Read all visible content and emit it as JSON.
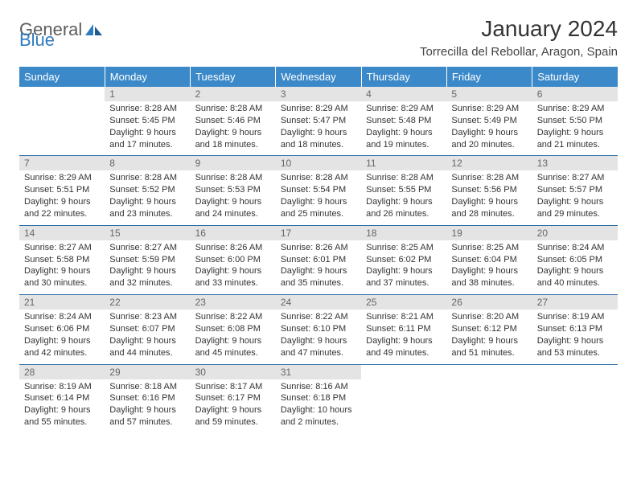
{
  "brand": {
    "word1": "General",
    "word2": "Blue"
  },
  "title": "January 2024",
  "location": "Torrecilla del Rebollar, Aragon, Spain",
  "colors": {
    "header_bg": "#3b89c9",
    "header_text": "#ffffff",
    "daynum_bg": "#e4e4e4",
    "row_border": "#2f6fa8",
    "logo_blue": "#2f7bbf"
  },
  "weekdays": [
    "Sunday",
    "Monday",
    "Tuesday",
    "Wednesday",
    "Thursday",
    "Friday",
    "Saturday"
  ],
  "weeks": [
    [
      {
        "n": "",
        "lines": []
      },
      {
        "n": "1",
        "lines": [
          "Sunrise: 8:28 AM",
          "Sunset: 5:45 PM",
          "Daylight: 9 hours",
          "and 17 minutes."
        ]
      },
      {
        "n": "2",
        "lines": [
          "Sunrise: 8:28 AM",
          "Sunset: 5:46 PM",
          "Daylight: 9 hours",
          "and 18 minutes."
        ]
      },
      {
        "n": "3",
        "lines": [
          "Sunrise: 8:29 AM",
          "Sunset: 5:47 PM",
          "Daylight: 9 hours",
          "and 18 minutes."
        ]
      },
      {
        "n": "4",
        "lines": [
          "Sunrise: 8:29 AM",
          "Sunset: 5:48 PM",
          "Daylight: 9 hours",
          "and 19 minutes."
        ]
      },
      {
        "n": "5",
        "lines": [
          "Sunrise: 8:29 AM",
          "Sunset: 5:49 PM",
          "Daylight: 9 hours",
          "and 20 minutes."
        ]
      },
      {
        "n": "6",
        "lines": [
          "Sunrise: 8:29 AM",
          "Sunset: 5:50 PM",
          "Daylight: 9 hours",
          "and 21 minutes."
        ]
      }
    ],
    [
      {
        "n": "7",
        "lines": [
          "Sunrise: 8:29 AM",
          "Sunset: 5:51 PM",
          "Daylight: 9 hours",
          "and 22 minutes."
        ]
      },
      {
        "n": "8",
        "lines": [
          "Sunrise: 8:28 AM",
          "Sunset: 5:52 PM",
          "Daylight: 9 hours",
          "and 23 minutes."
        ]
      },
      {
        "n": "9",
        "lines": [
          "Sunrise: 8:28 AM",
          "Sunset: 5:53 PM",
          "Daylight: 9 hours",
          "and 24 minutes."
        ]
      },
      {
        "n": "10",
        "lines": [
          "Sunrise: 8:28 AM",
          "Sunset: 5:54 PM",
          "Daylight: 9 hours",
          "and 25 minutes."
        ]
      },
      {
        "n": "11",
        "lines": [
          "Sunrise: 8:28 AM",
          "Sunset: 5:55 PM",
          "Daylight: 9 hours",
          "and 26 minutes."
        ]
      },
      {
        "n": "12",
        "lines": [
          "Sunrise: 8:28 AM",
          "Sunset: 5:56 PM",
          "Daylight: 9 hours",
          "and 28 minutes."
        ]
      },
      {
        "n": "13",
        "lines": [
          "Sunrise: 8:27 AM",
          "Sunset: 5:57 PM",
          "Daylight: 9 hours",
          "and 29 minutes."
        ]
      }
    ],
    [
      {
        "n": "14",
        "lines": [
          "Sunrise: 8:27 AM",
          "Sunset: 5:58 PM",
          "Daylight: 9 hours",
          "and 30 minutes."
        ]
      },
      {
        "n": "15",
        "lines": [
          "Sunrise: 8:27 AM",
          "Sunset: 5:59 PM",
          "Daylight: 9 hours",
          "and 32 minutes."
        ]
      },
      {
        "n": "16",
        "lines": [
          "Sunrise: 8:26 AM",
          "Sunset: 6:00 PM",
          "Daylight: 9 hours",
          "and 33 minutes."
        ]
      },
      {
        "n": "17",
        "lines": [
          "Sunrise: 8:26 AM",
          "Sunset: 6:01 PM",
          "Daylight: 9 hours",
          "and 35 minutes."
        ]
      },
      {
        "n": "18",
        "lines": [
          "Sunrise: 8:25 AM",
          "Sunset: 6:02 PM",
          "Daylight: 9 hours",
          "and 37 minutes."
        ]
      },
      {
        "n": "19",
        "lines": [
          "Sunrise: 8:25 AM",
          "Sunset: 6:04 PM",
          "Daylight: 9 hours",
          "and 38 minutes."
        ]
      },
      {
        "n": "20",
        "lines": [
          "Sunrise: 8:24 AM",
          "Sunset: 6:05 PM",
          "Daylight: 9 hours",
          "and 40 minutes."
        ]
      }
    ],
    [
      {
        "n": "21",
        "lines": [
          "Sunrise: 8:24 AM",
          "Sunset: 6:06 PM",
          "Daylight: 9 hours",
          "and 42 minutes."
        ]
      },
      {
        "n": "22",
        "lines": [
          "Sunrise: 8:23 AM",
          "Sunset: 6:07 PM",
          "Daylight: 9 hours",
          "and 44 minutes."
        ]
      },
      {
        "n": "23",
        "lines": [
          "Sunrise: 8:22 AM",
          "Sunset: 6:08 PM",
          "Daylight: 9 hours",
          "and 45 minutes."
        ]
      },
      {
        "n": "24",
        "lines": [
          "Sunrise: 8:22 AM",
          "Sunset: 6:10 PM",
          "Daylight: 9 hours",
          "and 47 minutes."
        ]
      },
      {
        "n": "25",
        "lines": [
          "Sunrise: 8:21 AM",
          "Sunset: 6:11 PM",
          "Daylight: 9 hours",
          "and 49 minutes."
        ]
      },
      {
        "n": "26",
        "lines": [
          "Sunrise: 8:20 AM",
          "Sunset: 6:12 PM",
          "Daylight: 9 hours",
          "and 51 minutes."
        ]
      },
      {
        "n": "27",
        "lines": [
          "Sunrise: 8:19 AM",
          "Sunset: 6:13 PM",
          "Daylight: 9 hours",
          "and 53 minutes."
        ]
      }
    ],
    [
      {
        "n": "28",
        "lines": [
          "Sunrise: 8:19 AM",
          "Sunset: 6:14 PM",
          "Daylight: 9 hours",
          "and 55 minutes."
        ]
      },
      {
        "n": "29",
        "lines": [
          "Sunrise: 8:18 AM",
          "Sunset: 6:16 PM",
          "Daylight: 9 hours",
          "and 57 minutes."
        ]
      },
      {
        "n": "30",
        "lines": [
          "Sunrise: 8:17 AM",
          "Sunset: 6:17 PM",
          "Daylight: 9 hours",
          "and 59 minutes."
        ]
      },
      {
        "n": "31",
        "lines": [
          "Sunrise: 8:16 AM",
          "Sunset: 6:18 PM",
          "Daylight: 10 hours",
          "and 2 minutes."
        ]
      },
      {
        "n": "",
        "lines": []
      },
      {
        "n": "",
        "lines": []
      },
      {
        "n": "",
        "lines": []
      }
    ]
  ]
}
